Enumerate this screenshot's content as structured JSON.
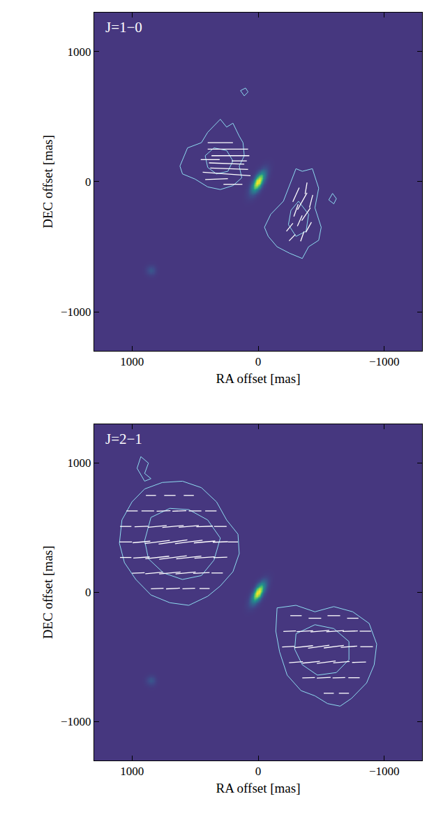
{
  "chart_data": [
    {
      "type": "image",
      "title": "J=1−0",
      "xlabel": "RA offset [mas]",
      "ylabel": "DEC offset [mas]",
      "xlim": [
        1300,
        -1300
      ],
      "ylim": [
        -1300,
        1300
      ],
      "xticks": [
        1000,
        0,
        {
          "value": -1000,
          "label": "−1000"
        }
      ],
      "yticks": [
        {
          "value": -1000,
          "label": "−1000"
        },
        0,
        1000
      ],
      "color": "#ffffff",
      "sources": [
        {
          "x": 0,
          "y": 0,
          "peak": 1,
          "major": 150,
          "minor": 60,
          "pa": -30
        },
        {
          "x": 850,
          "y": -680,
          "peak": 0.22,
          "major": 60,
          "minor": 60,
          "pa": 0
        }
      ],
      "contours": [
        [
          [
            620,
            120
          ],
          [
            560,
            260
          ],
          [
            450,
            300
          ],
          [
            400,
            380
          ],
          [
            300,
            480
          ],
          [
            250,
            420
          ],
          [
            200,
            450
          ],
          [
            150,
            350
          ],
          [
            120,
            300
          ],
          [
            110,
            200
          ],
          [
            150,
            120
          ],
          [
            130,
            30
          ],
          [
            200,
            -30
          ],
          [
            300,
            -60
          ],
          [
            400,
            -40
          ],
          [
            500,
            20
          ],
          [
            600,
            60
          ],
          [
            620,
            120
          ]
        ],
        [
          [
            420,
            200
          ],
          [
            350,
            260
          ],
          [
            250,
            240
          ],
          [
            200,
            160
          ],
          [
            240,
            80
          ],
          [
            330,
            60
          ],
          [
            400,
            110
          ],
          [
            420,
            200
          ]
        ],
        [
          [
            -300,
            100
          ],
          [
            -350,
            80
          ],
          [
            -430,
            100
          ],
          [
            -480,
            -50
          ],
          [
            -450,
            -200
          ],
          [
            -500,
            -350
          ],
          [
            -480,
            -450
          ],
          [
            -400,
            -500
          ],
          [
            -350,
            -590
          ],
          [
            -250,
            -550
          ],
          [
            -150,
            -500
          ],
          [
            -80,
            -420
          ],
          [
            -50,
            -350
          ],
          [
            -100,
            -250
          ],
          [
            -200,
            -150
          ],
          [
            -250,
            -30
          ],
          [
            -300,
            100
          ]
        ],
        [
          [
            -320,
            -150
          ],
          [
            -400,
            -250
          ],
          [
            -380,
            -380
          ],
          [
            -300,
            -420
          ],
          [
            -240,
            -330
          ],
          [
            -260,
            -220
          ],
          [
            -320,
            -150
          ]
        ],
        [
          [
            110,
            660
          ],
          [
            80,
            690
          ],
          [
            100,
            720
          ],
          [
            140,
            700
          ],
          [
            110,
            660
          ]
        ],
        [
          [
            -590,
            -90
          ],
          [
            -620,
            -130
          ],
          [
            -600,
            -170
          ],
          [
            -560,
            -140
          ],
          [
            -590,
            -90
          ]
        ]
      ],
      "vectors": [
        [
          250,
          60,
          86,
          380
        ],
        [
          230,
          100,
          88,
          300
        ],
        [
          250,
          140,
          88,
          280
        ],
        [
          220,
          200,
          90,
          300
        ],
        [
          240,
          250,
          90,
          320
        ],
        [
          300,
          300,
          90,
          200
        ],
        [
          330,
          20,
          92,
          180
        ],
        [
          200,
          -20,
          90,
          150
        ],
        [
          380,
          170,
          90,
          150
        ],
        [
          150,
          160,
          90,
          120
        ],
        [
          -300,
          -100,
          -25,
          120
        ],
        [
          -350,
          -150,
          -30,
          150
        ],
        [
          -300,
          -220,
          -20,
          100
        ],
        [
          -380,
          -250,
          -35,
          120
        ],
        [
          -330,
          -300,
          -25,
          90
        ],
        [
          -250,
          -350,
          -40,
          80
        ],
        [
          -400,
          -350,
          -30,
          90
        ],
        [
          -350,
          -420,
          -20,
          80
        ],
        [
          -270,
          -430,
          -45,
          70
        ],
        [
          -420,
          -150,
          -15,
          100
        ],
        [
          -380,
          -50,
          -10,
          90
        ]
      ]
    },
    {
      "type": "image",
      "title": "J=2−1",
      "xlabel": "RA offset [mas]",
      "ylabel": "DEC offset [mas]",
      "xlim": [
        1300,
        -1300
      ],
      "ylim": [
        -1300,
        1300
      ],
      "xticks": [
        1000,
        0,
        {
          "value": -1000,
          "label": "−1000"
        }
      ],
      "yticks": [
        {
          "value": -1000,
          "label": "−1000"
        },
        0,
        1000
      ],
      "color": "#ffffff",
      "sources": [
        {
          "x": 0,
          "y": 0,
          "peak": 1,
          "major": 150,
          "minor": 60,
          "pa": -30
        },
        {
          "x": 850,
          "y": -680,
          "peak": 0.22,
          "major": 60,
          "minor": 60,
          "pa": 0
        }
      ],
      "contours": [
        [
          [
            1100,
            380
          ],
          [
            1080,
            560
          ],
          [
            1000,
            700
          ],
          [
            900,
            800
          ],
          [
            760,
            850
          ],
          [
            600,
            860
          ],
          [
            450,
            810
          ],
          [
            330,
            700
          ],
          [
            250,
            560
          ],
          [
            160,
            450
          ],
          [
            150,
            300
          ],
          [
            200,
            160
          ],
          [
            300,
            50
          ],
          [
            400,
            -30
          ],
          [
            550,
            -100
          ],
          [
            700,
            -80
          ],
          [
            850,
            -20
          ],
          [
            970,
            100
          ],
          [
            1060,
            230
          ],
          [
            1100,
            380
          ]
        ],
        [
          [
            900,
            400
          ],
          [
            850,
            580
          ],
          [
            700,
            650
          ],
          [
            550,
            640
          ],
          [
            400,
            560
          ],
          [
            300,
            420
          ],
          [
            350,
            250
          ],
          [
            450,
            130
          ],
          [
            600,
            100
          ],
          [
            750,
            150
          ],
          [
            870,
            260
          ],
          [
            900,
            400
          ]
        ],
        [
          [
            930,
            1050
          ],
          [
            870,
            1000
          ],
          [
            900,
            920
          ],
          [
            850,
            880
          ],
          [
            900,
            860
          ],
          [
            960,
            960
          ],
          [
            930,
            1050
          ]
        ],
        [
          [
            -150,
            -120
          ],
          [
            -300,
            -100
          ],
          [
            -450,
            -150
          ],
          [
            -600,
            -110
          ],
          [
            -750,
            -150
          ],
          [
            -880,
            -240
          ],
          [
            -940,
            -400
          ],
          [
            -920,
            -560
          ],
          [
            -860,
            -700
          ],
          [
            -740,
            -820
          ],
          [
            -650,
            -880
          ],
          [
            -550,
            -860
          ],
          [
            -450,
            -800
          ],
          [
            -340,
            -760
          ],
          [
            -230,
            -640
          ],
          [
            -170,
            -460
          ],
          [
            -140,
            -300
          ],
          [
            -150,
            -120
          ]
        ],
        [
          [
            -300,
            -320
          ],
          [
            -450,
            -250
          ],
          [
            -600,
            -280
          ],
          [
            -720,
            -380
          ],
          [
            -720,
            -520
          ],
          [
            -620,
            -620
          ],
          [
            -470,
            -640
          ],
          [
            -350,
            -560
          ],
          [
            -290,
            -440
          ],
          [
            -300,
            -320
          ]
        ]
      ],
      "vectors": [
        [
          850,
          750,
          90,
          80
        ],
        [
          700,
          750,
          90,
          90
        ],
        [
          550,
          750,
          90,
          80
        ],
        [
          1000,
          630,
          90,
          90
        ],
        [
          875,
          630,
          90,
          100
        ],
        [
          750,
          630,
          92,
          110
        ],
        [
          625,
          630,
          92,
          110
        ],
        [
          500,
          630,
          90,
          100
        ],
        [
          375,
          630,
          90,
          90
        ],
        [
          1050,
          510,
          90,
          90
        ],
        [
          925,
          510,
          92,
          110
        ],
        [
          800,
          510,
          95,
          150
        ],
        [
          675,
          510,
          95,
          170
        ],
        [
          550,
          510,
          95,
          160
        ],
        [
          425,
          510,
          92,
          130
        ],
        [
          300,
          510,
          90,
          100
        ],
        [
          1050,
          390,
          90,
          100
        ],
        [
          925,
          390,
          95,
          140
        ],
        [
          800,
          390,
          97,
          200
        ],
        [
          675,
          390,
          98,
          230
        ],
        [
          550,
          390,
          97,
          220
        ],
        [
          425,
          390,
          95,
          170
        ],
        [
          300,
          390,
          92,
          120
        ],
        [
          200,
          390,
          90,
          80
        ],
        [
          1050,
          270,
          90,
          90
        ],
        [
          925,
          270,
          94,
          130
        ],
        [
          800,
          270,
          96,
          190
        ],
        [
          675,
          270,
          97,
          220
        ],
        [
          550,
          270,
          96,
          200
        ],
        [
          425,
          270,
          94,
          160
        ],
        [
          300,
          270,
          92,
          110
        ],
        [
          950,
          150,
          92,
          100
        ],
        [
          825,
          150,
          95,
          140
        ],
        [
          700,
          150,
          95,
          170
        ],
        [
          575,
          150,
          95,
          160
        ],
        [
          450,
          150,
          93,
          130
        ],
        [
          325,
          150,
          90,
          90
        ],
        [
          800,
          30,
          92,
          100
        ],
        [
          675,
          30,
          93,
          110
        ],
        [
          550,
          30,
          92,
          100
        ],
        [
          425,
          30,
          90,
          80
        ],
        [
          -300,
          -180,
          90,
          90
        ],
        [
          -450,
          -200,
          90,
          100
        ],
        [
          -600,
          -180,
          90,
          100
        ],
        [
          -750,
          -200,
          90,
          90
        ],
        [
          -250,
          -300,
          92,
          100
        ],
        [
          -370,
          -300,
          93,
          130
        ],
        [
          -490,
          -300,
          95,
          150
        ],
        [
          -610,
          -300,
          94,
          140
        ],
        [
          -730,
          -300,
          92,
          120
        ],
        [
          -850,
          -300,
          90,
          90
        ],
        [
          -240,
          -420,
          93,
          100
        ],
        [
          -360,
          -420,
          96,
          150
        ],
        [
          -480,
          -420,
          98,
          170
        ],
        [
          -600,
          -420,
          97,
          160
        ],
        [
          -720,
          -420,
          94,
          130
        ],
        [
          -860,
          -420,
          90,
          100
        ],
        [
          -300,
          -540,
          94,
          110
        ],
        [
          -420,
          -540,
          96,
          140
        ],
        [
          -540,
          -540,
          97,
          150
        ],
        [
          -660,
          -540,
          95,
          130
        ],
        [
          -800,
          -540,
          92,
          110
        ],
        [
          -400,
          -660,
          92,
          100
        ],
        [
          -520,
          -660,
          93,
          110
        ],
        [
          -640,
          -660,
          92,
          100
        ],
        [
          -760,
          -660,
          90,
          90
        ],
        [
          -560,
          -780,
          90,
          80
        ],
        [
          -680,
          -780,
          90,
          80
        ]
      ]
    }
  ]
}
